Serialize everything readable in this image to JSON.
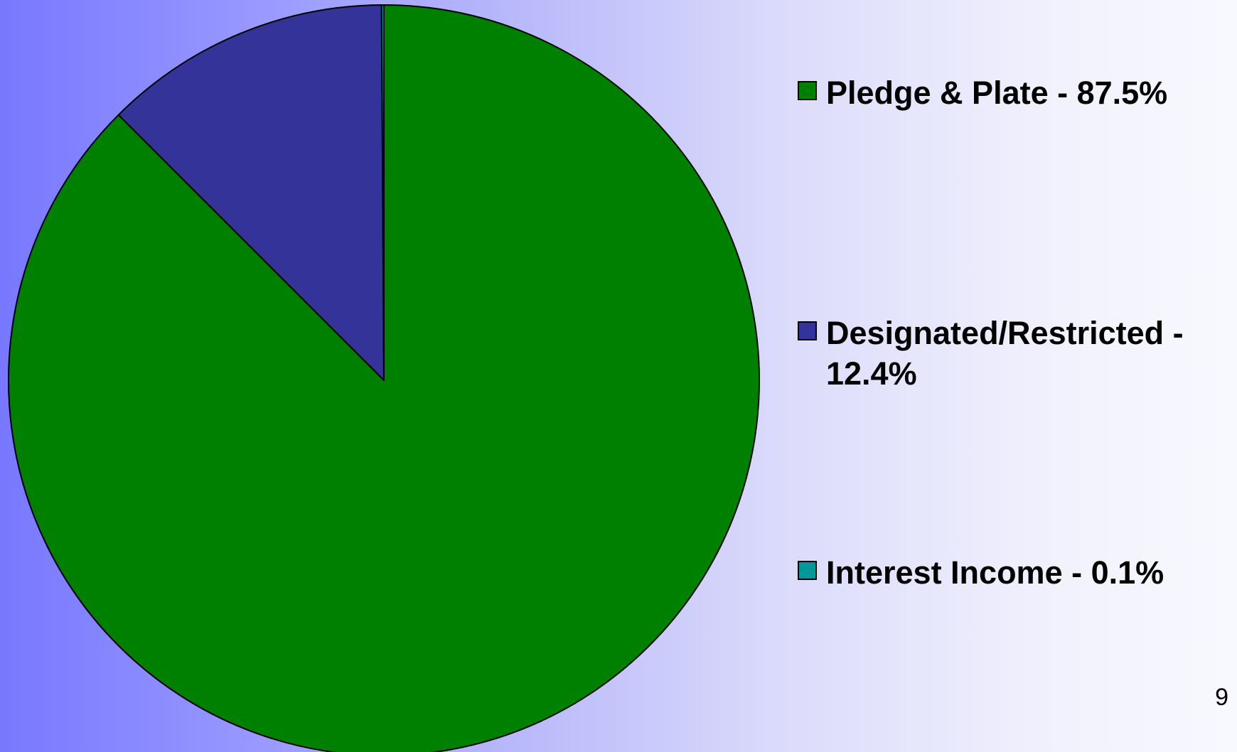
{
  "page_number": "9",
  "chart_data": {
    "type": "pie",
    "title": "",
    "start_angle_deg": 0,
    "direction": "clockwise",
    "legend_placement": "right",
    "slices": [
      {
        "label": "Pledge & Plate - 87.5%",
        "category": "Pledge & Plate",
        "value": 87.5,
        "color": "#008000"
      },
      {
        "label": "Designated/Restricted - 12.4%",
        "category": "Designated/Restricted",
        "value": 12.4,
        "color": "#333399"
      },
      {
        "label": "Interest Income - 0.1%",
        "category": "Interest Income",
        "value": 0.1,
        "color": "#009999"
      }
    ]
  }
}
